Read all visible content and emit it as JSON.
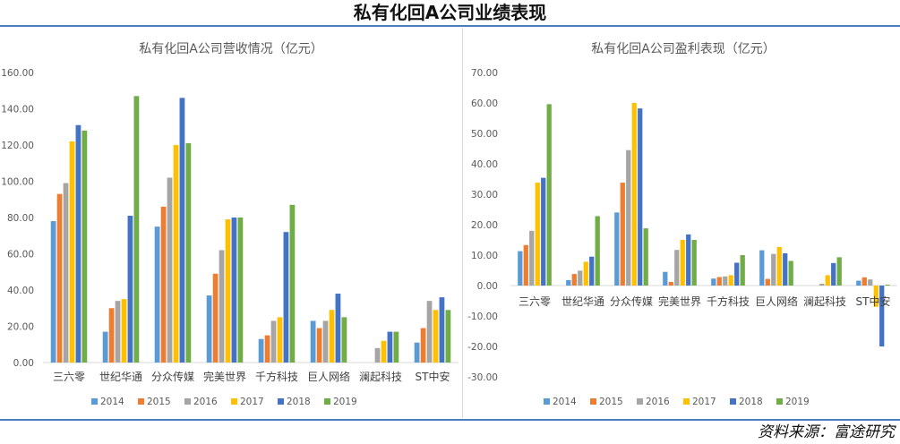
{
  "header": {
    "title": "私有化回A公司业绩表现"
  },
  "footer": {
    "source": "资料来源：富途研究"
  },
  "chart_data": [
    {
      "type": "bar",
      "title": "私有化回A公司营收情况（亿元）",
      "categories": [
        "三六零",
        "世纪华通",
        "分众传媒",
        "完美世界",
        "千方科技",
        "巨人网络",
        "澜起科技",
        "ST中安"
      ],
      "ylim": [
        0,
        160
      ],
      "yticks": [
        "0.00",
        "20.00",
        "40.00",
        "60.00",
        "80.00",
        "100.00",
        "120.00",
        "140.00",
        "160.00"
      ],
      "grid": false,
      "legend": "bottom",
      "series": [
        {
          "name": "2014",
          "color": "#5b9bd5",
          "values": [
            78,
            17,
            75,
            37,
            13,
            23,
            null,
            11
          ]
        },
        {
          "name": "2015",
          "color": "#ed7d31",
          "values": [
            93,
            30,
            86,
            49,
            15,
            19,
            null,
            19
          ]
        },
        {
          "name": "2016",
          "color": "#a5a5a5",
          "values": [
            99,
            34,
            102,
            62,
            23,
            23,
            8,
            34
          ]
        },
        {
          "name": "2017",
          "color": "#ffc000",
          "values": [
            122,
            35,
            120,
            79,
            25,
            29,
            12,
            29
          ]
        },
        {
          "name": "2018",
          "color": "#4472c4",
          "values": [
            131,
            81,
            146,
            80,
            72,
            38,
            17,
            36
          ]
        },
        {
          "name": "2019",
          "color": "#70ad47",
          "values": [
            128,
            147,
            121,
            80,
            87,
            25,
            17,
            29
          ]
        }
      ]
    },
    {
      "type": "bar",
      "title": "私有化回A公司盈利表现（亿元）",
      "categories": [
        "三六零",
        "世纪华通",
        "分众传媒",
        "完美世界",
        "千方科技",
        "巨人网络",
        "澜起科技",
        "ST中安"
      ],
      "ylim": [
        -30,
        70
      ],
      "yticks": [
        "-30.00",
        "-20.00",
        "-10.00",
        "0.00",
        "10.00",
        "20.00",
        "30.00",
        "40.00",
        "50.00",
        "60.00",
        "70.00"
      ],
      "grid": false,
      "legend": "bottom",
      "series": [
        {
          "name": "2014",
          "color": "#5b9bd5",
          "values": [
            11.3,
            1.8,
            24.0,
            4.5,
            2.3,
            11.6,
            null,
            1.6
          ]
        },
        {
          "name": "2015",
          "color": "#ed7d31",
          "values": [
            13.3,
            3.8,
            33.8,
            1.2,
            2.8,
            2.2,
            null,
            2.7
          ]
        },
        {
          "name": "2016",
          "color": "#a5a5a5",
          "values": [
            18.0,
            4.9,
            44.5,
            11.7,
            3.0,
            10.4,
            0.6,
            2.0
          ]
        },
        {
          "name": "2017",
          "color": "#ffc000",
          "values": [
            33.8,
            7.8,
            60.0,
            15.0,
            3.4,
            12.7,
            3.4,
            -7.0
          ]
        },
        {
          "name": "2018",
          "color": "#4472c4",
          "values": [
            35.4,
            9.5,
            58.2,
            16.8,
            7.5,
            10.6,
            7.4,
            -20.0
          ]
        },
        {
          "name": "2019",
          "color": "#70ad47",
          "values": [
            59.6,
            22.8,
            18.8,
            15.0,
            10.0,
            8.1,
            9.3,
            0.3
          ]
        }
      ]
    }
  ]
}
